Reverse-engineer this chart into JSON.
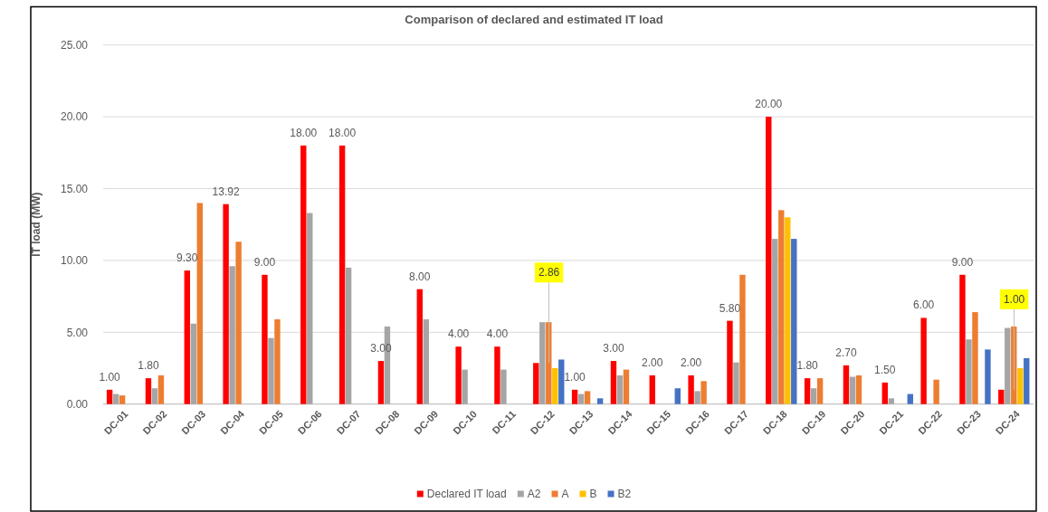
{
  "chart_data": {
    "type": "bar",
    "title": "Comparison of declared and estimated IT load",
    "ylabel": "IT load (MW)",
    "categories": [
      "DC-01",
      "DC-02",
      "DC-03",
      "DC-04",
      "DC-05",
      "DC-06",
      "DC-07",
      "DC-08",
      "DC-09",
      "DC-10",
      "DC-11",
      "DC-12",
      "DC-13",
      "DC-14",
      "DC-15",
      "DC-16",
      "DC-17",
      "DC-18",
      "DC-19",
      "DC-20",
      "DC-21",
      "DC-22",
      "DC-23",
      "DC-24"
    ],
    "series": [
      {
        "name": "Declared IT load",
        "color": "#ff0000",
        "values": [
          1.0,
          1.8,
          9.3,
          13.92,
          9.0,
          18.0,
          18.0,
          3.0,
          8.0,
          4.0,
          4.0,
          2.86,
          1.0,
          3.0,
          2.0,
          2.0,
          5.8,
          20.0,
          1.8,
          2.7,
          1.5,
          6.0,
          9.0,
          1.0
        ],
        "value_labels": [
          "1.00",
          "1.80",
          "9.30",
          "13.92",
          "9.00",
          "18.00",
          "18.00",
          "3.00",
          "8.00",
          "4.00",
          "4.00",
          null,
          "1.00",
          "3.00",
          "2.00",
          "2.00",
          "5.80",
          "20.00",
          "1.80",
          "2.70",
          "1.50",
          "6.00",
          "9.00",
          null
        ]
      },
      {
        "name": "A2",
        "color": "#a5a5a5",
        "values": [
          0.7,
          1.1,
          5.6,
          9.6,
          4.6,
          13.3,
          9.5,
          5.4,
          5.9,
          2.4,
          2.4,
          5.7,
          0.7,
          2.0,
          null,
          0.9,
          2.9,
          11.5,
          1.1,
          1.9,
          0.4,
          null,
          4.5,
          5.3
        ]
      },
      {
        "name": "A",
        "color": "#ed7d31",
        "values": [
          0.6,
          2.0,
          14.0,
          11.3,
          5.9,
          null,
          null,
          null,
          null,
          null,
          null,
          5.7,
          0.9,
          2.4,
          null,
          1.6,
          9.0,
          13.5,
          1.8,
          2.0,
          null,
          1.7,
          6.4,
          5.4
        ]
      },
      {
        "name": "B",
        "color": "#ffc000",
        "values": [
          null,
          null,
          null,
          null,
          null,
          null,
          null,
          null,
          null,
          null,
          null,
          2.5,
          null,
          null,
          null,
          null,
          null,
          13.0,
          null,
          null,
          null,
          null,
          null,
          2.5
        ]
      },
      {
        "name": "B2",
        "color": "#4472c4",
        "values": [
          null,
          null,
          null,
          null,
          null,
          null,
          null,
          null,
          null,
          null,
          null,
          3.1,
          0.4,
          null,
          1.1,
          null,
          null,
          11.5,
          null,
          null,
          0.7,
          null,
          3.8,
          3.2
        ]
      }
    ],
    "annotations": [
      {
        "text": "2.86",
        "x": "DC-12",
        "y": 2.86
      },
      {
        "text": "1.00",
        "x": "DC-24",
        "y": 1.0
      }
    ],
    "ylim": [
      0,
      25
    ],
    "yticks": [
      {
        "value": 0,
        "label": "0.00"
      },
      {
        "value": 5,
        "label": "5.00"
      },
      {
        "value": 10,
        "label": "10.00"
      },
      {
        "value": 15,
        "label": "15.00"
      },
      {
        "value": 20,
        "label": "20.00"
      },
      {
        "value": 25,
        "label": "25.00"
      }
    ],
    "grid": "y",
    "legend": "bottom"
  }
}
